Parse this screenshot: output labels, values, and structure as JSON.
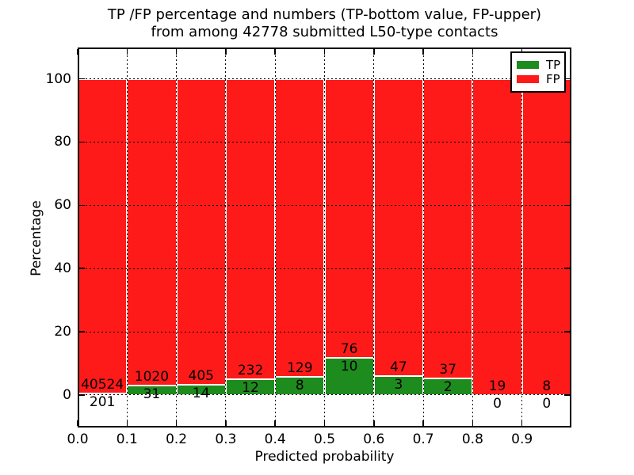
{
  "figure": {
    "title_line1": "TP /FP percentage and numbers (TP-bottom value, FP-upper)",
    "title_line2": "from among 42778 submitted L50-type contacts",
    "xlabel": "Predicted probability",
    "ylabel": "Percentage",
    "total_contacts": "42778"
  },
  "chart_data": {
    "type": "bar",
    "stacked": true,
    "normalized": "each bar totals 100%",
    "bin_width": 0.1,
    "bin_starts": [
      0.0,
      0.1,
      0.2,
      0.3,
      0.4,
      0.5,
      0.6,
      0.7,
      0.8,
      0.9
    ],
    "series": [
      {
        "name": "TP",
        "color": "#1E8B1E",
        "values": [
          201,
          31,
          14,
          12,
          8,
          10,
          3,
          2,
          0,
          0
        ]
      },
      {
        "name": "FP",
        "color": "#FF1A1A",
        "values": [
          40524,
          1020,
          405,
          232,
          129,
          76,
          47,
          37,
          19,
          8
        ]
      }
    ],
    "tp_percent_of_bar": [
      0.49,
      2.95,
      3.34,
      4.92,
      5.84,
      11.63,
      6.0,
      5.13,
      0.0,
      0.0
    ],
    "xlabel": "Predicted probability",
    "ylabel": "Percentage",
    "xlim": [
      0.0,
      1.0
    ],
    "ylim": [
      -10.3,
      109.9
    ],
    "xtick_labels": [
      "0.0",
      "0.1",
      "0.2",
      "0.3",
      "0.4",
      "0.5",
      "0.6",
      "0.7",
      "0.8",
      "0.9"
    ],
    "xtick_values": [
      0.0,
      0.1,
      0.2,
      0.3,
      0.4,
      0.5,
      0.6,
      0.7,
      0.8,
      0.9
    ],
    "ytick_labels": [
      "0",
      "20",
      "40",
      "60",
      "80",
      "100"
    ],
    "ytick_values": [
      0,
      20,
      40,
      60,
      80,
      100
    ],
    "grid": true,
    "bar_edge_color": "#FFFFFF",
    "legend": {
      "position": "upper right",
      "entries": [
        {
          "label": "TP",
          "color": "#1E8B1E"
        },
        {
          "label": "FP",
          "color": "#FF1A1A"
        }
      ]
    }
  }
}
